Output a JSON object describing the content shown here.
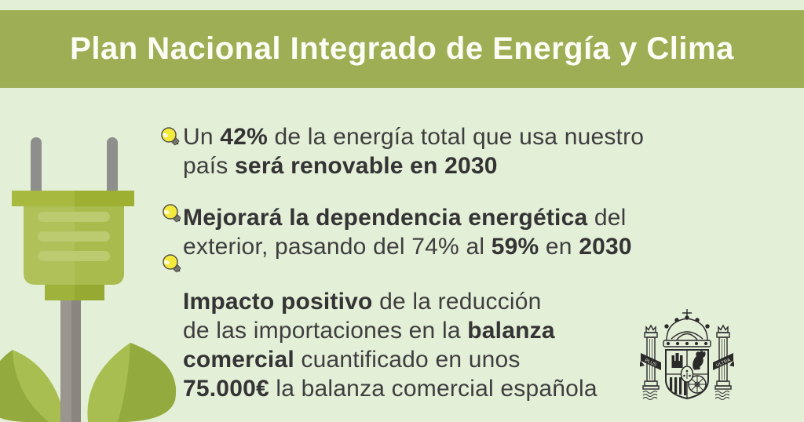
{
  "banner": {
    "title": "Plan Nacional Integrado de Energía y Clima"
  },
  "bullets": [
    {
      "icon": "lightbulb-icon",
      "segments": [
        {
          "t": "Un ",
          "b": false
        },
        {
          "t": "42%",
          "b": true
        },
        {
          "t": " de la energía total que usa nuestro",
          "b": false
        },
        {
          "br": true
        },
        {
          "t": "país ",
          "b": false
        },
        {
          "t": "será renovable en 2030",
          "b": true
        }
      ]
    },
    {
      "icon": "lightbulb-icon",
      "segments": [
        {
          "t": "Mejorará la dependencia energética",
          "b": true
        },
        {
          "t": " del",
          "b": false
        },
        {
          "br": true
        },
        {
          "t": "exterior, pasando del 74% al ",
          "b": false
        },
        {
          "t": "59%",
          "b": true
        },
        {
          "t": " en ",
          "b": false
        },
        {
          "t": "2030",
          "b": true
        }
      ]
    },
    {
      "icon": "lightbulb-icon",
      "segments": [
        {
          "t": "Impacto positivo",
          "b": true
        },
        {
          "t": " de la reducción",
          "b": false
        },
        {
          "br": true
        },
        {
          "t": "de las importaciones en la ",
          "b": false
        },
        {
          "t": "balanza",
          "b": true
        },
        {
          "br": true
        },
        {
          "t": "comercial",
          "b": true
        },
        {
          "t": " cuantificado en unos",
          "b": false
        },
        {
          "br": true
        },
        {
          "t": "75.000€",
          "b": true
        },
        {
          "t": " la balanza comercial española",
          "b": false
        }
      ]
    }
  ],
  "coat_of_arms": {
    "name": "escudo-de-espana",
    "ribbon_left": "PLUS",
    "ribbon_right": "ULTRA"
  },
  "colors": {
    "banner_green": "#9dae55",
    "background_green": "#e4efd8",
    "plug_cap_green": "#a7b93f",
    "plug_body_green": "#afc158",
    "plug_stripe_green": "#bcca70",
    "leaf_light_green": "#a8be50",
    "leaf_dark_green": "#93ab3e",
    "cable_gray": "#96918a",
    "text_dark": "#3e3e3e",
    "bulb_yellow": "#f4ea3d",
    "arms_ink": "#2a2a2a"
  }
}
